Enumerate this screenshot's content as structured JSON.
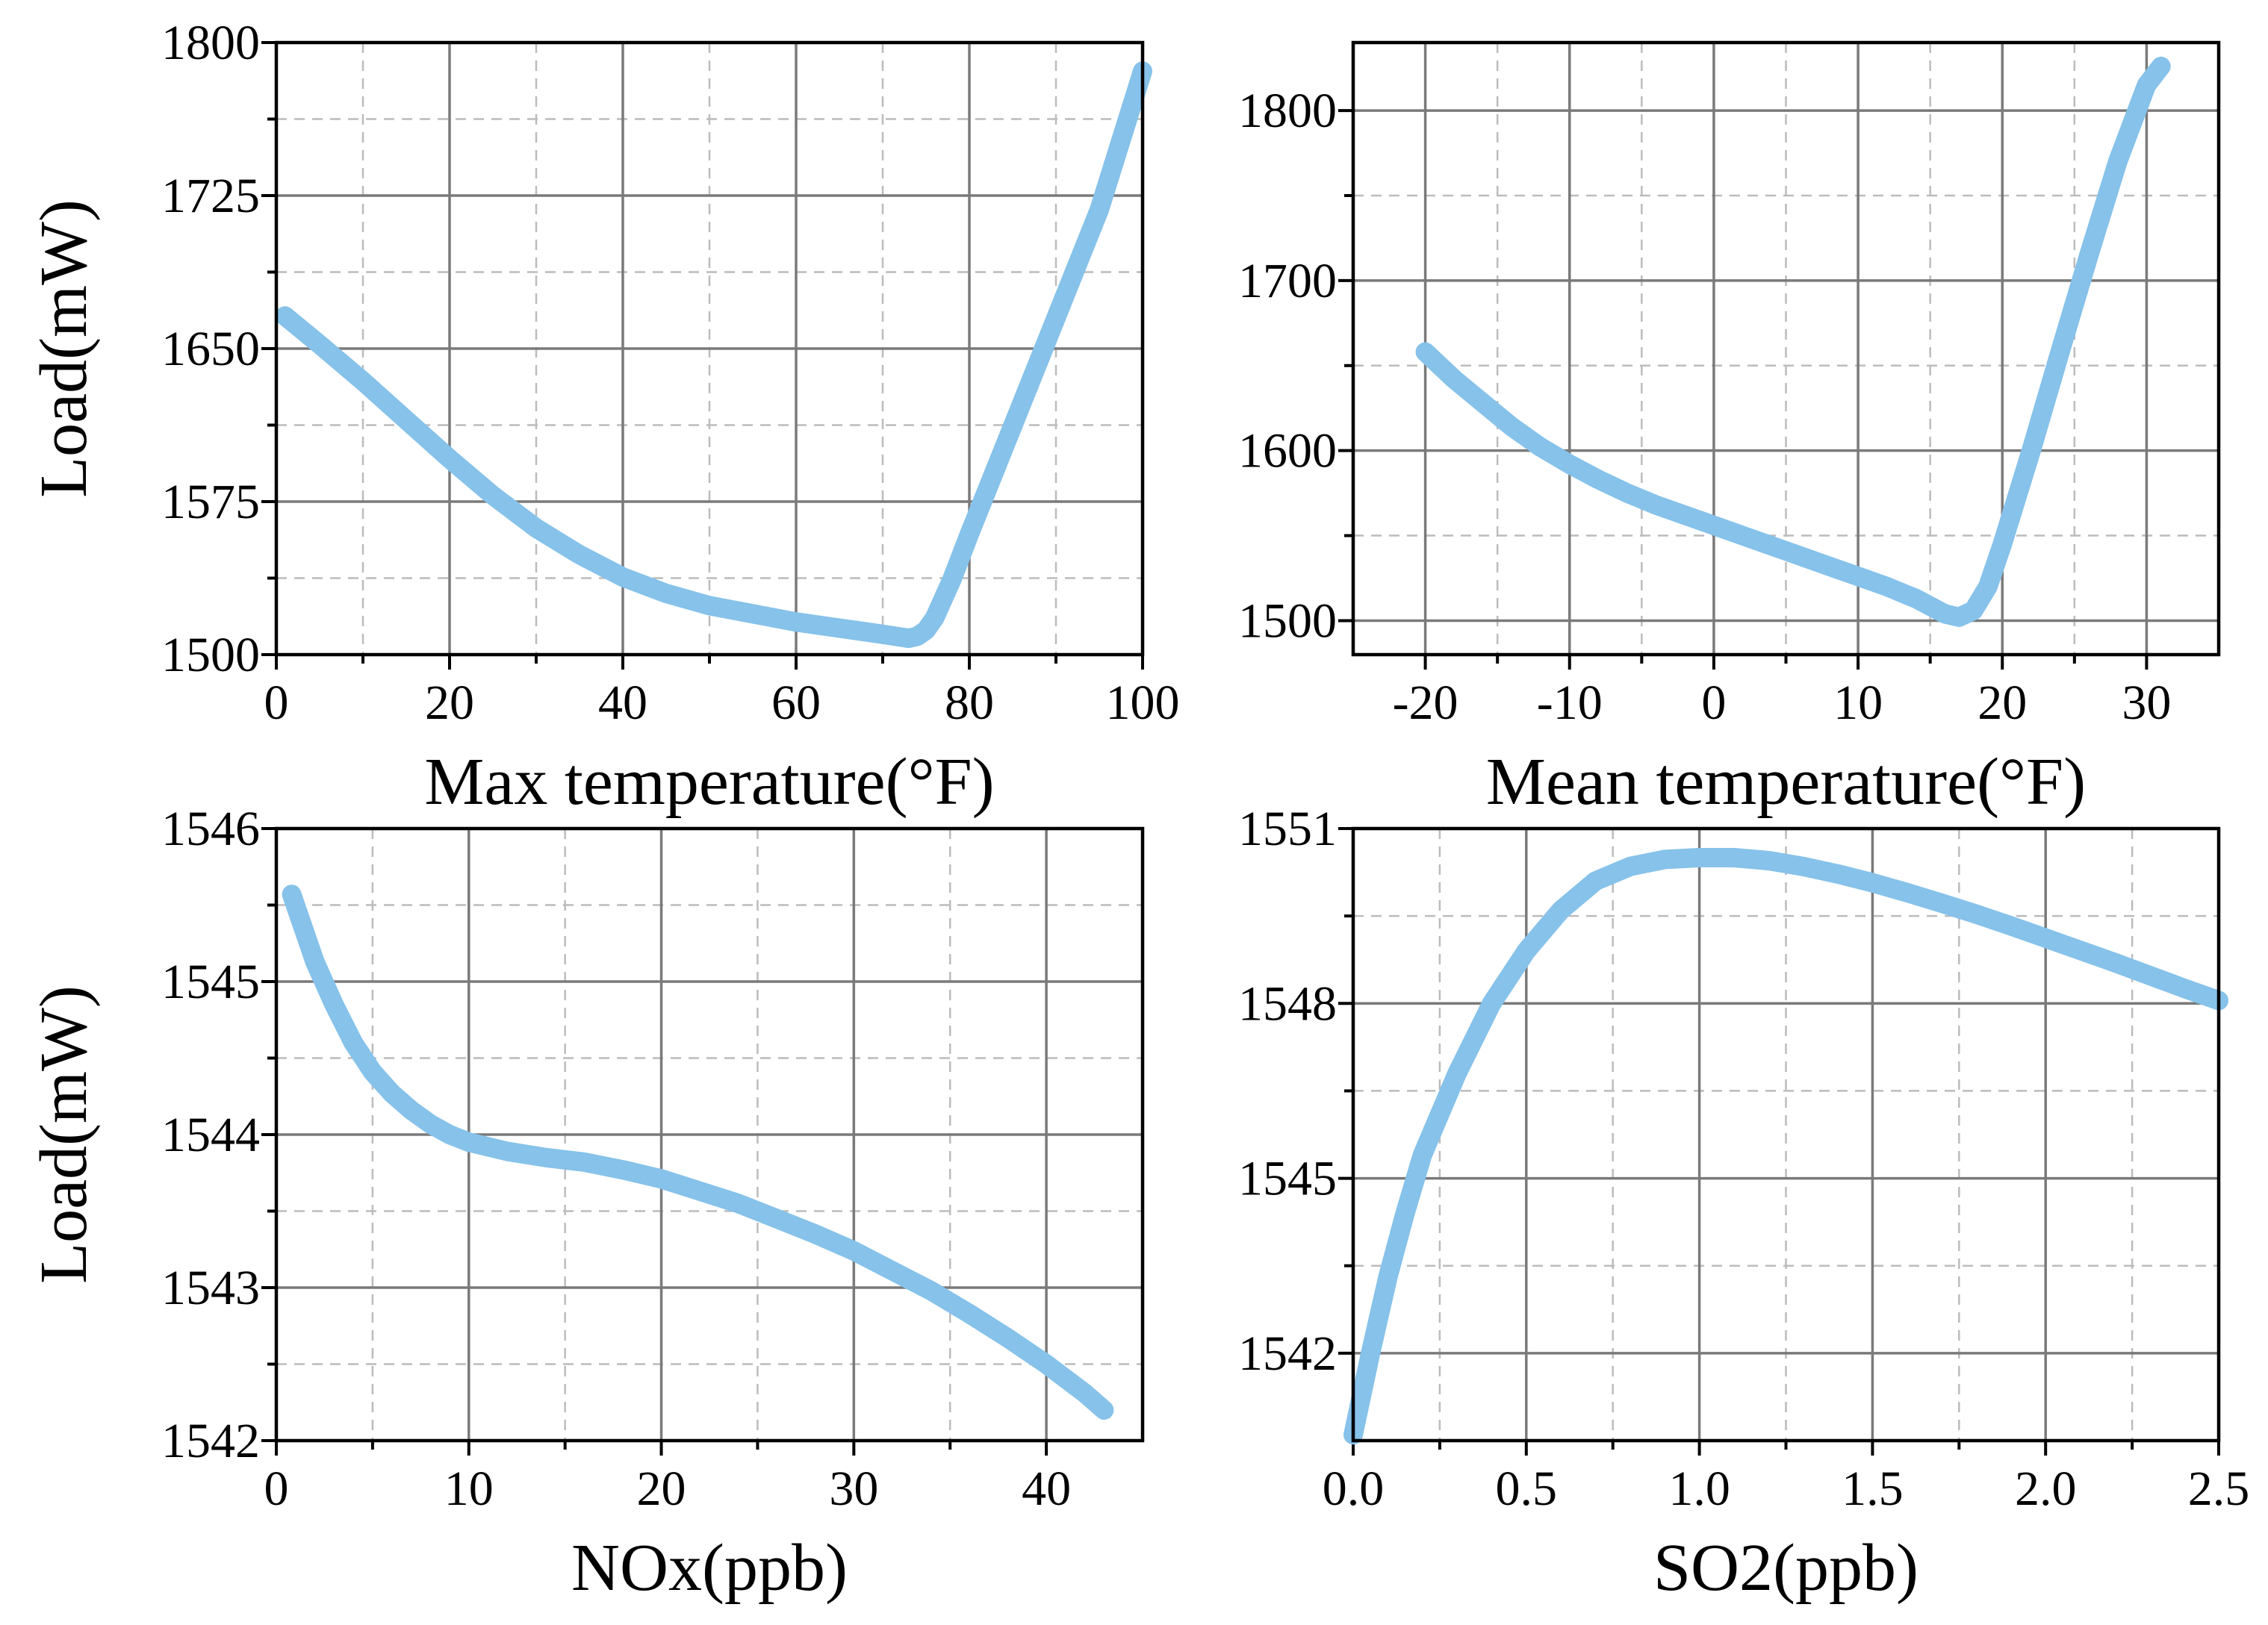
{
  "figure": {
    "title": ""
  },
  "colors": {
    "curve": "#86c2ea",
    "frame": "#000000",
    "major_grid": "#7a7a7a",
    "minor_grid": "#bcbcbc"
  },
  "chart_data": [
    {
      "type": "line",
      "title": "",
      "xlabel": "Max temperature(°F)",
      "ylabel": "Load(mW)",
      "xlim": [
        0,
        100
      ],
      "ylim": [
        1500,
        1800
      ],
      "xticks": [
        0,
        20,
        40,
        60,
        80,
        100
      ],
      "xtick_labels": [
        "0",
        "20",
        "40",
        "60",
        "80",
        "100"
      ],
      "yticks": [
        1500,
        1575,
        1650,
        1725,
        1800
      ],
      "ytick_labels": [
        "1500",
        "1575",
        "1650",
        "1725",
        "1800"
      ],
      "grid": true,
      "series": [
        {
          "name": "Load",
          "x": [
            1,
            5,
            10,
            15,
            20,
            25,
            30,
            35,
            40,
            45,
            50,
            55,
            60,
            65,
            70,
            73,
            74,
            75,
            76,
            78,
            80,
            85,
            90,
            95,
            100
          ],
          "y": [
            1666,
            1652,
            1634,
            1615,
            1596,
            1578,
            1562,
            1549,
            1538,
            1530,
            1524,
            1520,
            1516,
            1513,
            1510,
            1508,
            1509,
            1512,
            1518,
            1537,
            1559,
            1612,
            1665,
            1718,
            1786
          ]
        }
      ]
    },
    {
      "type": "line",
      "title": "",
      "xlabel": "Mean temperature(°F)",
      "ylabel": "",
      "xlim": [
        -25,
        35
      ],
      "ylim": [
        1480,
        1840
      ],
      "xticks": [
        -20,
        -10,
        0,
        10,
        20,
        30
      ],
      "xtick_labels": [
        "-20",
        "-10",
        "0",
        "10",
        "20",
        "30"
      ],
      "yticks": [
        1500,
        1600,
        1700,
        1800
      ],
      "ytick_labels": [
        "1500",
        "1600",
        "1700",
        "1800"
      ],
      "grid": true,
      "series": [
        {
          "name": "Load",
          "x": [
            -20,
            -18,
            -16,
            -14,
            -12,
            -10,
            -8,
            -6,
            -4,
            -2,
            0,
            2,
            4,
            6,
            8,
            10,
            12,
            14,
            16,
            17,
            18,
            19,
            20,
            22,
            24,
            26,
            28,
            30,
            31
          ],
          "y": [
            1658,
            1642,
            1628,
            1614,
            1602,
            1592,
            1583,
            1575,
            1568,
            1562,
            1556,
            1550,
            1544,
            1538,
            1532,
            1526,
            1520,
            1513,
            1504,
            1502,
            1506,
            1520,
            1545,
            1600,
            1658,
            1715,
            1770,
            1815,
            1826
          ]
        }
      ]
    },
    {
      "type": "line",
      "title": "",
      "xlabel": "NOx(ppb)",
      "ylabel": "Load(mW)",
      "xlim": [
        0,
        45
      ],
      "ylim": [
        1542,
        1546
      ],
      "xticks": [
        0,
        10,
        20,
        30,
        40
      ],
      "xtick_labels": [
        "0",
        "10",
        "20",
        "30",
        "40"
      ],
      "yticks": [
        1542,
        1543,
        1544,
        1545,
        1546
      ],
      "ytick_labels": [
        "1542",
        "1543",
        "1544",
        "1545",
        "1546"
      ],
      "grid": true,
      "series": [
        {
          "name": "Load",
          "x": [
            0.8,
            2,
            3,
            4,
            5,
            6,
            7,
            8,
            9,
            10,
            12,
            14,
            16,
            18,
            20,
            22,
            24,
            26,
            28,
            30,
            32,
            34,
            36,
            38,
            40,
            42,
            43
          ],
          "y": [
            1545.57,
            1545.13,
            1544.85,
            1544.6,
            1544.41,
            1544.27,
            1544.16,
            1544.07,
            1544.0,
            1543.95,
            1543.89,
            1543.85,
            1543.82,
            1543.77,
            1543.71,
            1543.63,
            1543.55,
            1543.45,
            1543.35,
            1543.24,
            1543.11,
            1542.98,
            1542.83,
            1542.67,
            1542.5,
            1542.31,
            1542.2
          ]
        }
      ]
    },
    {
      "type": "line",
      "title": "",
      "xlabel": "SO2(ppb)",
      "ylabel": "",
      "xlim": [
        0,
        2.5
      ],
      "ylim": [
        1540.5,
        1551
      ],
      "xticks": [
        0,
        0.5,
        1.0,
        1.5,
        2.0,
        2.5
      ],
      "xtick_labels": [
        "0.0",
        "0.5",
        "1.0",
        "1.5",
        "2.0",
        "2.5"
      ],
      "yticks": [
        1542,
        1545,
        1548,
        1551
      ],
      "ytick_labels": [
        "1542",
        "1545",
        "1548",
        "1551"
      ],
      "grid": true,
      "series": [
        {
          "name": "Load",
          "x": [
            0.0,
            0.05,
            0.1,
            0.15,
            0.2,
            0.3,
            0.4,
            0.5,
            0.6,
            0.7,
            0.8,
            0.9,
            1.0,
            1.1,
            1.2,
            1.3,
            1.4,
            1.5,
            1.6,
            1.7,
            1.8,
            1.9,
            2.0,
            2.1,
            2.2,
            2.3,
            2.4,
            2.5
          ],
          "y": [
            1540.6,
            1542.0,
            1543.3,
            1544.4,
            1545.4,
            1546.8,
            1548.0,
            1548.9,
            1549.6,
            1550.1,
            1550.35,
            1550.47,
            1550.5,
            1550.5,
            1550.45,
            1550.35,
            1550.22,
            1550.07,
            1549.9,
            1549.72,
            1549.53,
            1549.33,
            1549.12,
            1548.91,
            1548.7,
            1548.48,
            1548.26,
            1548.05
          ]
        }
      ]
    }
  ]
}
